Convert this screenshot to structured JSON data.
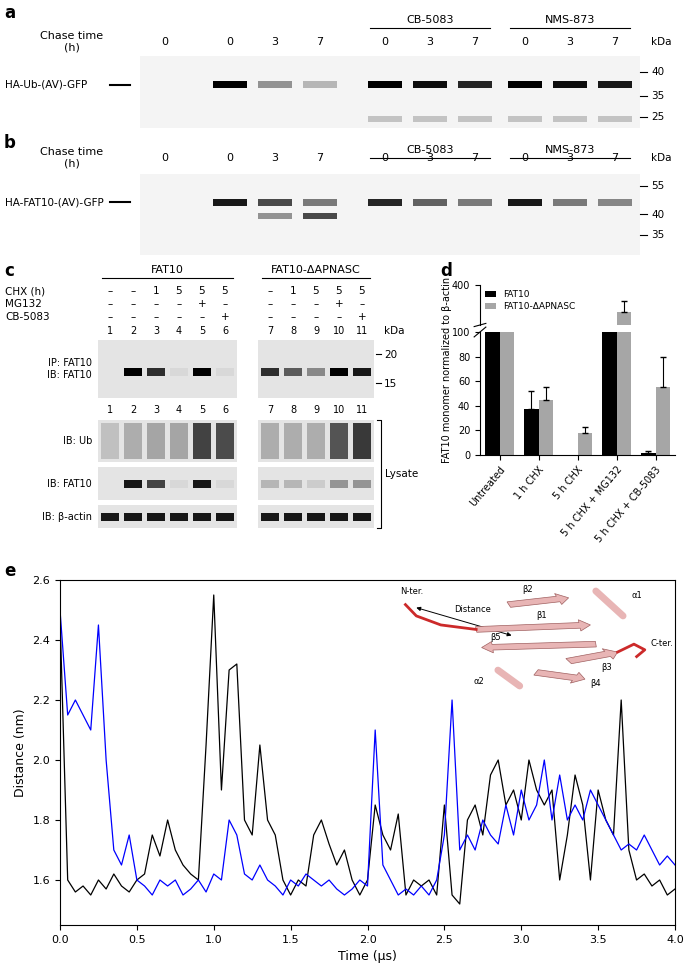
{
  "panel_a": {
    "label": "a",
    "row_title": "Chase time\n(h)",
    "unit": "kDa",
    "markers": [
      40,
      35,
      25
    ],
    "band_label": "HA-Ub-(AV)-GFP",
    "lane_groups": [
      {
        "chase_time": [
          0
        ],
        "band": [
          0.0
        ],
        "lower_band": [
          0.0
        ]
      },
      {
        "chase_time": [
          0,
          3,
          7
        ],
        "band": [
          1.0,
          0.4,
          0.25
        ],
        "lower_band": [
          0.0,
          0.0,
          0.0
        ]
      },
      {
        "name": "CB-5083",
        "chase_time": [
          0,
          3,
          7
        ],
        "band": [
          1.0,
          0.95,
          0.85
        ],
        "lower_band": [
          0.2,
          0.2,
          0.2
        ]
      },
      {
        "name": "NMS-873",
        "chase_time": [
          0,
          3,
          7
        ],
        "band": [
          1.0,
          0.95,
          0.9
        ],
        "lower_band": [
          0.2,
          0.2,
          0.2
        ]
      }
    ]
  },
  "panel_b": {
    "label": "b",
    "row_title": "Chase time\n(h)",
    "unit": "kDa",
    "markers": [
      55,
      40,
      35
    ],
    "band_label": "HA-FAT10-(AV)-GFP",
    "lane_groups": [
      {
        "chase_time": [
          0
        ],
        "band": [
          0.0
        ],
        "lower_band": [
          0.0
        ]
      },
      {
        "chase_time": [
          0,
          3,
          7
        ],
        "band": [
          0.9,
          0.7,
          0.5
        ],
        "lower_band": [
          0.0,
          0.4,
          0.7
        ]
      },
      {
        "name": "CB-5083",
        "chase_time": [
          0,
          3,
          7
        ],
        "band": [
          0.85,
          0.6,
          0.5
        ],
        "lower_band": [
          0.0,
          0.0,
          0.0
        ]
      },
      {
        "name": "NMS-873",
        "chase_time": [
          0,
          3,
          7
        ],
        "band": [
          0.9,
          0.5,
          0.45
        ],
        "lower_band": [
          0.0,
          0.0,
          0.0
        ]
      }
    ]
  },
  "panel_c": {
    "label": "c",
    "unit": "kDa",
    "markers": [
      20,
      15
    ],
    "treatments": [
      "CHX (h)",
      "MG132",
      "CB-5083"
    ],
    "blots": [
      "IP: FAT10\nIB: FAT10",
      "IB: Ub",
      "IB: FAT10",
      "IB: β-actin"
    ],
    "bracket": "Lysate",
    "groups": [
      {
        "name": "FAT10",
        "lanes": [
          1,
          2,
          3,
          4,
          5,
          6
        ],
        "treatment_values": [
          [
            "–",
            "–",
            "1",
            "5",
            "5",
            "5"
          ],
          [
            "–",
            "–",
            "–",
            "–",
            "+",
            "–"
          ],
          [
            "–",
            "–",
            "–",
            "–",
            "–",
            "+"
          ]
        ],
        "intensity": [
          [
            0.0,
            1.0,
            0.8,
            0.05,
            1.0,
            0.05
          ],
          [
            0.2,
            0.3,
            0.35,
            0.35,
            0.9,
            0.85
          ],
          [
            0.0,
            0.9,
            0.7,
            0.05,
            0.9,
            0.05
          ],
          [
            0.9,
            0.9,
            0.9,
            0.9,
            0.9,
            0.9
          ]
        ]
      },
      {
        "name": "FAT10-ΔAPNASC",
        "lanes": [
          7,
          8,
          9,
          10,
          11
        ],
        "treatment_values": [
          [
            "–",
            "1",
            "5",
            "5",
            "5"
          ],
          [
            "–",
            "–",
            "–",
            "+",
            "–"
          ],
          [
            "–",
            "–",
            "–",
            "–",
            "+"
          ]
        ],
        "intensity": [
          [
            0.8,
            0.6,
            0.4,
            1.0,
            0.9
          ],
          [
            0.3,
            0.3,
            0.3,
            0.8,
            0.95
          ],
          [
            0.2,
            0.2,
            0.1,
            0.35,
            0.35
          ],
          [
            0.9,
            0.9,
            0.9,
            0.9,
            0.9
          ]
        ]
      }
    ]
  },
  "chart_data": [
    {
      "type": "bar",
      "label": "d",
      "categories": [
        "Untreated",
        "1 h CHX",
        "5 h CHX",
        "5 h CHX + MG132",
        "5 h CHX + CB-5083"
      ],
      "series": [
        {
          "name": "FAT10",
          "color": "#000000",
          "values": [
            100,
            37,
            0,
            100,
            2
          ],
          "errors": [
            0,
            15,
            0,
            0,
            1
          ]
        },
        {
          "name": "FAT10-ΔAPNASC",
          "color": "#a6a6a6",
          "values": [
            100,
            45,
            18,
            230,
            55
          ],
          "errors": [
            0,
            10,
            5,
            70,
            25
          ]
        }
      ],
      "ylabel": "FAT10 monomer normalized to β-actin",
      "ylim": [
        0,
        400
      ],
      "y_break": [
        100,
        150
      ],
      "yticks": [
        0,
        20,
        40,
        60,
        80,
        100,
        400
      ],
      "legend": "upper left"
    },
    {
      "type": "line",
      "label": "e",
      "x": [
        0.0,
        0.05,
        0.1,
        0.15,
        0.2,
        0.25,
        0.3,
        0.35,
        0.4,
        0.45,
        0.5,
        0.55,
        0.6,
        0.65,
        0.7,
        0.75,
        0.8,
        0.85,
        0.9,
        0.95,
        1.0,
        1.05,
        1.1,
        1.15,
        1.2,
        1.25,
        1.3,
        1.35,
        1.4,
        1.45,
        1.5,
        1.55,
        1.6,
        1.65,
        1.7,
        1.75,
        1.8,
        1.85,
        1.9,
        1.95,
        2.0,
        2.05,
        2.1,
        2.15,
        2.2,
        2.25,
        2.3,
        2.35,
        2.4,
        2.45,
        2.5,
        2.55,
        2.6,
        2.65,
        2.7,
        2.75,
        2.8,
        2.85,
        2.9,
        2.95,
        3.0,
        3.05,
        3.1,
        3.15,
        3.2,
        3.25,
        3.3,
        3.35,
        3.4,
        3.45,
        3.5,
        3.55,
        3.6,
        3.65,
        3.7,
        3.75,
        3.8,
        3.85,
        3.9,
        3.95,
        4.0
      ],
      "series": [
        {
          "color": "#000000",
          "values": [
            2.48,
            1.6,
            1.56,
            1.58,
            1.55,
            1.6,
            1.57,
            1.62,
            1.58,
            1.56,
            1.6,
            1.62,
            1.75,
            1.68,
            1.8,
            1.7,
            1.65,
            1.62,
            1.6,
            2.05,
            2.55,
            1.9,
            2.3,
            2.32,
            1.8,
            1.75,
            2.05,
            1.8,
            1.75,
            1.6,
            1.55,
            1.6,
            1.58,
            1.75,
            1.8,
            1.72,
            1.65,
            1.7,
            1.6,
            1.55,
            1.6,
            1.85,
            1.75,
            1.7,
            1.82,
            1.55,
            1.6,
            1.58,
            1.6,
            1.55,
            1.85,
            1.55,
            1.52,
            1.8,
            1.85,
            1.75,
            1.95,
            2.0,
            1.85,
            1.9,
            1.8,
            2.0,
            1.9,
            1.85,
            1.9,
            1.6,
            1.75,
            1.95,
            1.85,
            1.6,
            1.9,
            1.8,
            1.75,
            2.2,
            1.7,
            1.6,
            1.62,
            1.58,
            1.6,
            1.55,
            1.57
          ]
        },
        {
          "color": "#0000ff",
          "values": [
            2.5,
            2.15,
            2.2,
            2.15,
            2.1,
            2.45,
            2.0,
            1.7,
            1.65,
            1.75,
            1.6,
            1.58,
            1.55,
            1.6,
            1.58,
            1.6,
            1.55,
            1.57,
            1.6,
            1.56,
            1.62,
            1.6,
            1.8,
            1.75,
            1.62,
            1.6,
            1.65,
            1.6,
            1.58,
            1.55,
            1.6,
            1.58,
            1.62,
            1.6,
            1.58,
            1.6,
            1.57,
            1.55,
            1.57,
            1.6,
            1.58,
            2.1,
            1.65,
            1.6,
            1.55,
            1.57,
            1.55,
            1.58,
            1.55,
            1.6,
            1.75,
            2.2,
            1.7,
            1.75,
            1.7,
            1.8,
            1.75,
            1.72,
            1.85,
            1.75,
            1.9,
            1.8,
            1.85,
            2.0,
            1.8,
            1.95,
            1.8,
            1.85,
            1.8,
            1.9,
            1.85,
            1.8,
            1.75,
            1.7,
            1.72,
            1.7,
            1.75,
            1.7,
            1.65,
            1.68,
            1.65
          ]
        }
      ],
      "xlabel": "Time (µs)",
      "ylabel": "Distance (nm)",
      "xlim": [
        0,
        4
      ],
      "ylim": [
        1.45,
        2.6
      ],
      "xticks": [
        {
          "value": 0,
          "label": "0.0"
        },
        {
          "value": 0.5,
          "label": "0.5"
        },
        {
          "value": 1,
          "label": "1.0"
        },
        {
          "value": 1.5,
          "label": "1.5"
        },
        {
          "value": 2,
          "label": "2.0"
        },
        {
          "value": 2.5,
          "label": "2.5"
        },
        {
          "value": 3,
          "label": "3.0"
        },
        {
          "value": 3.5,
          "label": "3.5"
        },
        {
          "value": 4,
          "label": "4.0"
        }
      ],
      "yticks": [
        1.6,
        1.8,
        {
          "value": 2,
          "label": "2.0"
        },
        2.2,
        2.4,
        2.6
      ],
      "inset": {
        "n_terminus": "N-ter.",
        "c_terminus": "C-ter.",
        "distance": "Distance",
        "elements": [
          "β2",
          "α1",
          "β1",
          "β5",
          "β3",
          "β4",
          "α2"
        ]
      }
    }
  ]
}
